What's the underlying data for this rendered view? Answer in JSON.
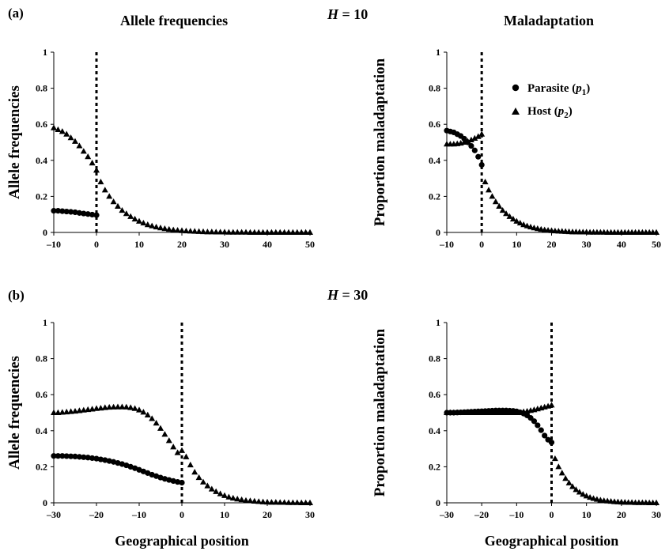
{
  "labels": {
    "panel_a": "(a)",
    "panel_b": "(b)",
    "title_left": "Allele frequencies",
    "title_right": "Maladaptation",
    "h_a_var": "H",
    "h_a_rest": " = 10",
    "h_b_var": "H",
    "h_b_rest": " = 30",
    "legend_parasite": "Parasite (",
    "legend_parasite_var": "p",
    "legend_parasite_sub": "1",
    "legend_host": "Host (",
    "legend_host_var": "p",
    "legend_host_sub": "2",
    "legend_close": ")"
  },
  "chart_data": [
    {
      "id": "a-left",
      "type": "scatter",
      "ylabel": "Allele frequencies",
      "xlabel": "",
      "xlim": [
        -10,
        50
      ],
      "ylim": [
        0,
        1
      ],
      "xticks": [
        -10,
        0,
        10,
        20,
        30,
        40,
        50
      ],
      "yticks": [
        0,
        0.2,
        0.4,
        0.6,
        0.8,
        1
      ],
      "ytick_labels": [
        "0",
        "0.2",
        "0.4",
        "0.6",
        "0.8",
        "1"
      ],
      "vline": 0,
      "series": [
        {
          "name": "Parasite (p1)",
          "marker": "circle",
          "x": [
            -10,
            -9,
            -8,
            -7,
            -6,
            -5,
            -4,
            -3,
            -2,
            -1,
            0
          ],
          "y": [
            0.12,
            0.12,
            0.118,
            0.116,
            0.114,
            0.112,
            0.108,
            0.105,
            0.102,
            0.099,
            0.096
          ]
        },
        {
          "name": "Host (p2)",
          "marker": "triangle",
          "x": [
            -10,
            -9,
            -8,
            -7,
            -6,
            -5,
            -4,
            -3,
            -2,
            -1,
            0,
            1,
            2,
            3,
            4,
            5,
            6,
            7,
            8,
            9,
            10,
            11,
            12,
            13,
            14,
            15,
            16,
            17,
            18,
            19,
            20,
            21,
            22,
            23,
            24,
            25,
            26,
            27,
            28,
            29,
            30,
            31,
            32,
            33,
            34,
            35,
            36,
            37,
            38,
            39,
            40,
            41,
            42,
            43,
            44,
            45,
            46,
            47,
            48,
            49,
            50
          ],
          "y": [
            0.58,
            0.57,
            0.56,
            0.545,
            0.525,
            0.505,
            0.48,
            0.45,
            0.42,
            0.385,
            0.345,
            0.28,
            0.235,
            0.2,
            0.17,
            0.145,
            0.122,
            0.104,
            0.088,
            0.074,
            0.062,
            0.052,
            0.043,
            0.036,
            0.03,
            0.025,
            0.021,
            0.017,
            0.014,
            0.012,
            0.01,
            0.008,
            0.007,
            0.006,
            0.005,
            0.004,
            0.003,
            0.003,
            0.002,
            0.002,
            0.002,
            0.001,
            0.001,
            0.001,
            0.001,
            0.001,
            0,
            0,
            0,
            0,
            0,
            0,
            0,
            0,
            0,
            0,
            0,
            0,
            0,
            0,
            0
          ]
        }
      ]
    },
    {
      "id": "a-right",
      "type": "scatter",
      "ylabel": "Proportion maladaptation",
      "xlabel": "",
      "xlim": [
        -10,
        50
      ],
      "ylim": [
        0,
        1
      ],
      "xticks": [
        -10,
        0,
        10,
        20,
        30,
        40,
        50
      ],
      "yticks": [
        0,
        0.2,
        0.4,
        0.6,
        0.8,
        1
      ],
      "ytick_labels": [
        "0",
        "0.2",
        "0.4",
        "0.6",
        "0.8",
        "1"
      ],
      "vline": 0,
      "series": [
        {
          "name": "Parasite (p1)",
          "marker": "circle",
          "x": [
            -10,
            -9,
            -8,
            -7,
            -6,
            -5,
            -4,
            -3,
            -2,
            -1,
            0
          ],
          "y": [
            0.565,
            0.56,
            0.555,
            0.545,
            0.535,
            0.52,
            0.5,
            0.48,
            0.455,
            0.42,
            0.375
          ]
        },
        {
          "name": "Host (p2)",
          "marker": "triangle",
          "x": [
            -10,
            -9,
            -8,
            -7,
            -6,
            -5,
            -4,
            -3,
            -2,
            -1,
            0,
            1,
            2,
            3,
            4,
            5,
            6,
            7,
            8,
            9,
            10,
            11,
            12,
            13,
            14,
            15,
            16,
            17,
            18,
            19,
            20,
            21,
            22,
            23,
            24,
            25,
            26,
            27,
            28,
            29,
            30,
            31,
            32,
            33,
            34,
            35,
            36,
            37,
            38,
            39,
            40,
            41,
            42,
            43,
            44,
            45,
            46,
            47,
            48,
            49,
            50
          ],
          "y": [
            0.49,
            0.49,
            0.49,
            0.492,
            0.495,
            0.5,
            0.505,
            0.513,
            0.522,
            0.532,
            0.545,
            0.28,
            0.235,
            0.2,
            0.17,
            0.145,
            0.122,
            0.104,
            0.088,
            0.074,
            0.062,
            0.052,
            0.043,
            0.036,
            0.03,
            0.025,
            0.021,
            0.017,
            0.014,
            0.012,
            0.01,
            0.008,
            0.007,
            0.006,
            0.005,
            0.004,
            0.003,
            0.003,
            0.002,
            0.002,
            0.002,
            0.001,
            0.001,
            0.001,
            0.001,
            0.001,
            0,
            0,
            0,
            0,
            0,
            0,
            0,
            0,
            0,
            0,
            0,
            0,
            0,
            0,
            0
          ]
        }
      ]
    },
    {
      "id": "b-left",
      "type": "scatter",
      "ylabel": "Allele frequencies",
      "xlabel": "Geographical position",
      "xlim": [
        -30,
        30
      ],
      "ylim": [
        0,
        1
      ],
      "xticks": [
        -30,
        -20,
        -10,
        0,
        10,
        20,
        30
      ],
      "yticks": [
        0,
        0.2,
        0.4,
        0.6,
        0.8,
        1
      ],
      "ytick_labels": [
        "0",
        "0.2",
        "0.4",
        "0.6",
        "0.8",
        "1"
      ],
      "vline": 0,
      "series": [
        {
          "name": "Parasite (p1)",
          "marker": "circle",
          "x": [
            -30,
            -29,
            -28,
            -27,
            -26,
            -25,
            -24,
            -23,
            -22,
            -21,
            -20,
            -19,
            -18,
            -17,
            -16,
            -15,
            -14,
            -13,
            -12,
            -11,
            -10,
            -9,
            -8,
            -7,
            -6,
            -5,
            -4,
            -3,
            -2,
            -1,
            0
          ],
          "y": [
            0.26,
            0.26,
            0.26,
            0.259,
            0.258,
            0.257,
            0.255,
            0.253,
            0.251,
            0.248,
            0.245,
            0.241,
            0.237,
            0.232,
            0.227,
            0.221,
            0.215,
            0.208,
            0.2,
            0.192,
            0.183,
            0.174,
            0.165,
            0.156,
            0.148,
            0.14,
            0.133,
            0.127,
            0.121,
            0.116,
            0.112
          ]
        },
        {
          "name": "Host (p2)",
          "marker": "triangle",
          "x": [
            -30,
            -29,
            -28,
            -27,
            -26,
            -25,
            -24,
            -23,
            -22,
            -21,
            -20,
            -19,
            -18,
            -17,
            -16,
            -15,
            -14,
            -13,
            -12,
            -11,
            -10,
            -9,
            -8,
            -7,
            -6,
            -5,
            -4,
            -3,
            -2,
            -1,
            0,
            1,
            2,
            3,
            4,
            5,
            6,
            7,
            8,
            9,
            10,
            11,
            12,
            13,
            14,
            15,
            16,
            17,
            18,
            19,
            20,
            21,
            22,
            23,
            24,
            25,
            26,
            27,
            28,
            29,
            30
          ],
          "y": [
            0.5,
            0.5,
            0.502,
            0.504,
            0.506,
            0.508,
            0.511,
            0.514,
            0.517,
            0.52,
            0.523,
            0.525,
            0.528,
            0.53,
            0.531,
            0.532,
            0.532,
            0.531,
            0.528,
            0.523,
            0.515,
            0.503,
            0.487,
            0.467,
            0.442,
            0.413,
            0.38,
            0.345,
            0.31,
            0.278,
            0.29,
            0.255,
            0.21,
            0.17,
            0.14,
            0.115,
            0.094,
            0.076,
            0.062,
            0.05,
            0.04,
            0.032,
            0.026,
            0.021,
            0.017,
            0.013,
            0.011,
            0.009,
            0.007,
            0.005,
            0.004,
            0.003,
            0.003,
            0.002,
            0.002,
            0.001,
            0.001,
            0.001,
            0,
            0,
            0
          ]
        }
      ]
    },
    {
      "id": "b-right",
      "type": "scatter",
      "ylabel": "Proportion maladaptation",
      "xlabel": "Geographical position",
      "xlim": [
        -30,
        30
      ],
      "ylim": [
        0,
        1
      ],
      "xticks": [
        -30,
        -20,
        -10,
        0,
        10,
        20,
        30
      ],
      "yticks": [
        0,
        0.2,
        0.4,
        0.6,
        0.8,
        1
      ],
      "ytick_labels": [
        "0",
        "0.2",
        "0.4",
        "0.6",
        "0.8",
        "1"
      ],
      "vline": 0,
      "series": [
        {
          "name": "Parasite (p1)",
          "marker": "circle",
          "x": [
            -30,
            -29,
            -28,
            -27,
            -26,
            -25,
            -24,
            -23,
            -22,
            -21,
            -20,
            -19,
            -18,
            -17,
            -16,
            -15,
            -14,
            -13,
            -12,
            -11,
            -10,
            -9,
            -8,
            -7,
            -6,
            -5,
            -4,
            -3,
            -2,
            -1,
            0
          ],
          "y": [
            0.5,
            0.5,
            0.5,
            0.501,
            0.502,
            0.503,
            0.504,
            0.505,
            0.506,
            0.507,
            0.508,
            0.509,
            0.51,
            0.511,
            0.512,
            0.512,
            0.512,
            0.512,
            0.511,
            0.51,
            0.507,
            0.502,
            0.495,
            0.485,
            0.471,
            0.453,
            0.43,
            0.403,
            0.373,
            0.35,
            0.335
          ]
        },
        {
          "name": "Host (p2)",
          "marker": "triangle",
          "x": [
            -30,
            -29,
            -28,
            -27,
            -26,
            -25,
            -24,
            -23,
            -22,
            -21,
            -20,
            -19,
            -18,
            -17,
            -16,
            -15,
            -14,
            -13,
            -12,
            -11,
            -10,
            -9,
            -8,
            -7,
            -6,
            -5,
            -4,
            -3,
            -2,
            -1,
            0,
            1,
            2,
            3,
            4,
            5,
            6,
            7,
            8,
            9,
            10,
            11,
            12,
            13,
            14,
            15,
            16,
            17,
            18,
            19,
            20,
            21,
            22,
            23,
            24,
            25,
            26,
            27,
            28,
            29,
            30
          ],
          "y": [
            0.5,
            0.5,
            0.5,
            0.5,
            0.5,
            0.5,
            0.5,
            0.5,
            0.5,
            0.5,
            0.5,
            0.5,
            0.5,
            0.5,
            0.5,
            0.5,
            0.5,
            0.5,
            0.5,
            0.5,
            0.5,
            0.502,
            0.505,
            0.508,
            0.512,
            0.516,
            0.521,
            0.526,
            0.531,
            0.536,
            0.542,
            0.245,
            0.2,
            0.165,
            0.135,
            0.11,
            0.09,
            0.073,
            0.059,
            0.047,
            0.038,
            0.03,
            0.024,
            0.019,
            0.015,
            0.012,
            0.01,
            0.008,
            0.006,
            0.005,
            0.004,
            0.003,
            0.002,
            0.002,
            0.001,
            0.001,
            0.001,
            0.001,
            0,
            0,
            0
          ]
        }
      ]
    }
  ]
}
